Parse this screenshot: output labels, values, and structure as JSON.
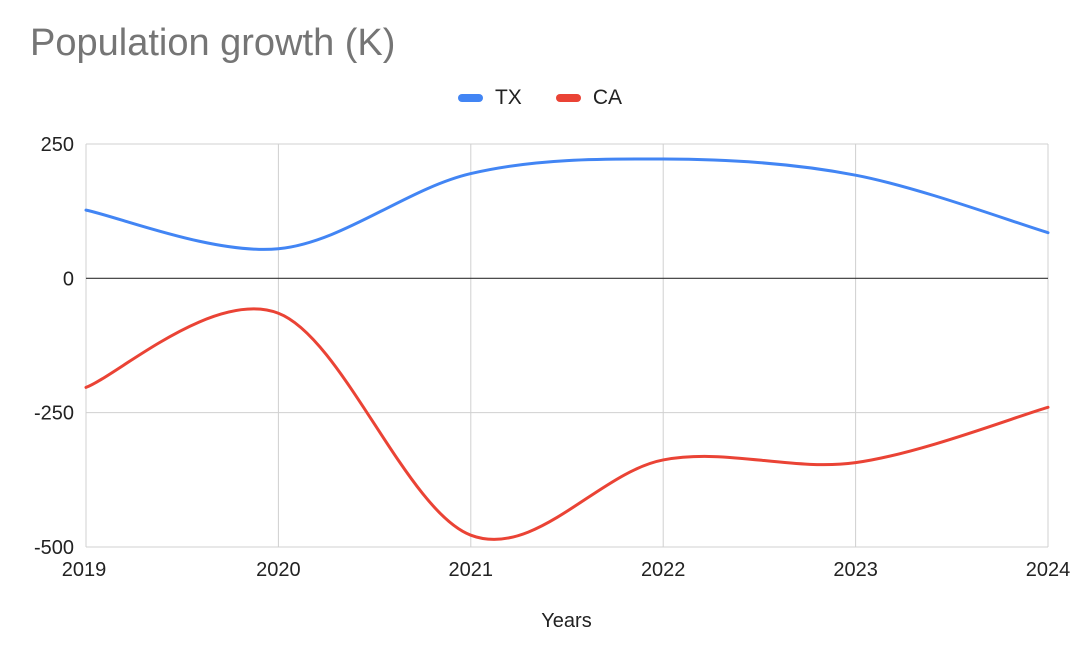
{
  "chart_data": {
    "type": "line",
    "title": "Population growth (K)",
    "xlabel": "Years",
    "ylabel": "",
    "categories": [
      "2019",
      "2020",
      "2021",
      "2022",
      "2023",
      "2024"
    ],
    "series": [
      {
        "name": "TX",
        "color": "#4285f4",
        "values": [
          127,
          55,
          195,
          222,
          192,
          85
        ]
      },
      {
        "name": "CA",
        "color": "#ea4335",
        "values": [
          -203,
          -65,
          -478,
          -338,
          -343,
          -240
        ]
      }
    ],
    "ylim": [
      -500,
      250
    ],
    "yticks": [
      "250",
      "0",
      "-250",
      "-500"
    ],
    "grid": true,
    "legend_position": "top",
    "curve": "smooth"
  }
}
